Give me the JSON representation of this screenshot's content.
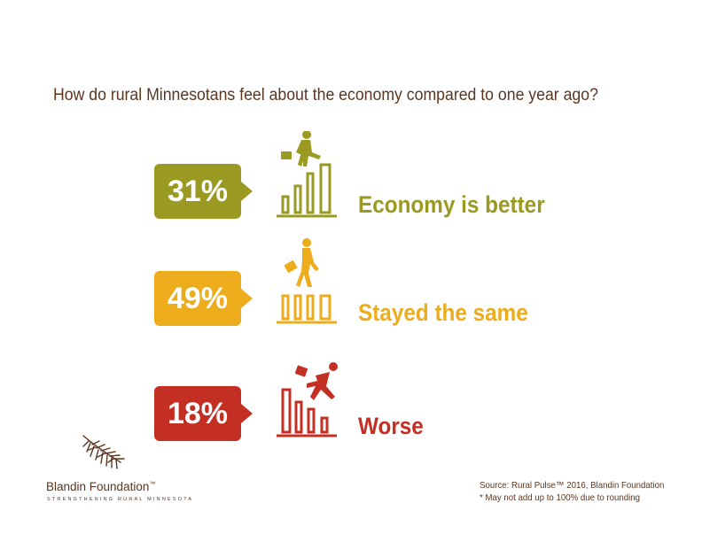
{
  "colors": {
    "better": "#9a9a22",
    "same": "#ecac1c",
    "worse": "#c42f24",
    "text_brown": "#5a3620"
  },
  "chart_data": {
    "type": "table",
    "title": "How do rural Minnesotans feel about the economy compared to one year ago?",
    "categories": [
      "Economy is better",
      "Stayed the same",
      "Worse"
    ],
    "values": [
      31,
      49,
      18
    ],
    "value_labels": [
      "31%",
      "49%",
      "18%"
    ],
    "icons": [
      "rising-bars-climber-icon",
      "flat-bars-walker-icon",
      "falling-bars-runner-icon"
    ]
  },
  "footer": {
    "org_name": "Blandin Foundation",
    "org_trademark": "™",
    "org_tagline": "STRENGTHENING RURAL MINNESOTA",
    "logo_icon": "pine-branch-icon",
    "source_line": "Source: Rural Pulse™ 2016, Blandin Foundation",
    "note_line": "* May not add up to 100% due to rounding"
  }
}
